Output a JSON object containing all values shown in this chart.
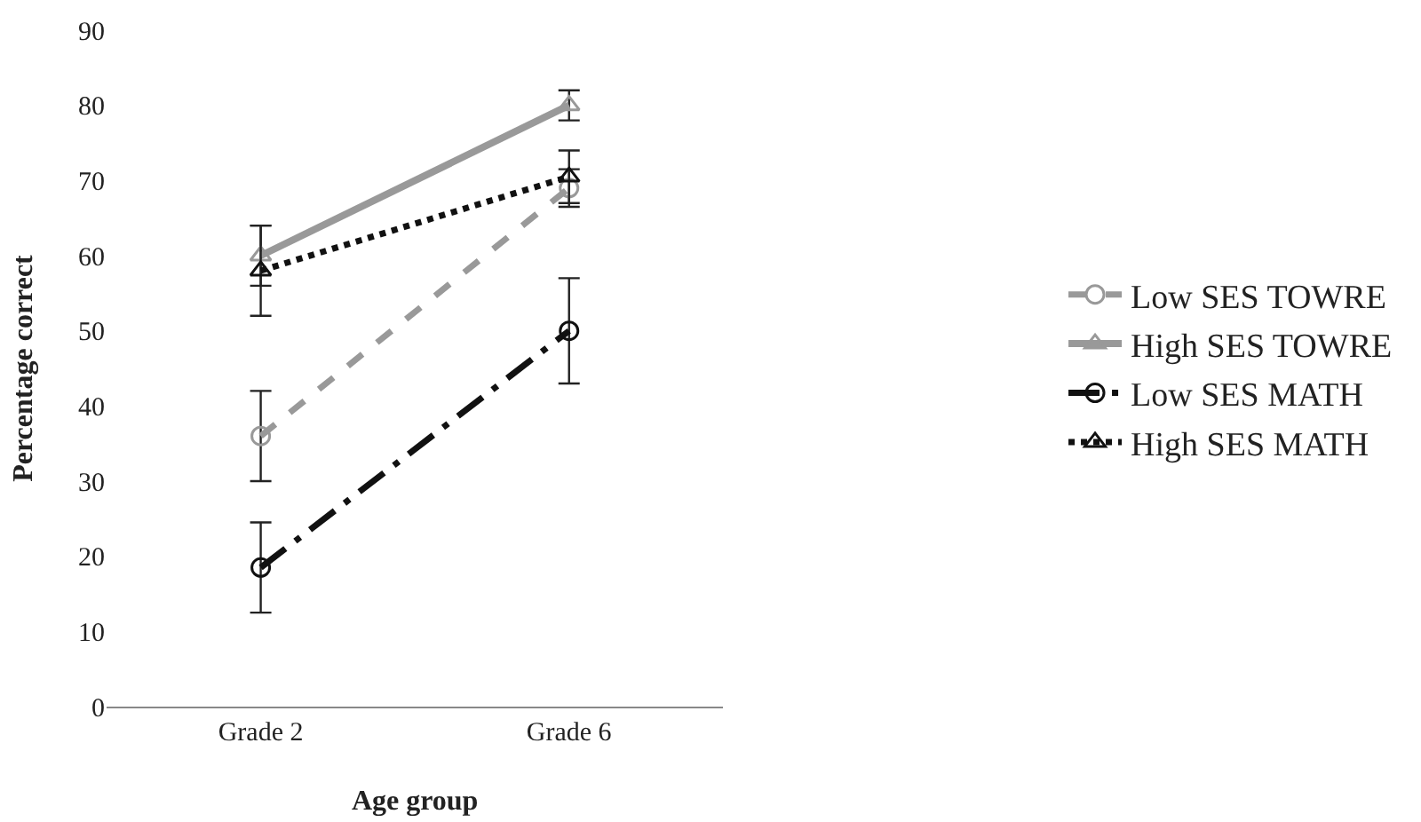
{
  "chart_data": {
    "type": "line",
    "xlabel": "Age group",
    "ylabel": "Percentage correct",
    "categories": [
      "Grade 2",
      "Grade 6"
    ],
    "ylim": [
      0,
      90
    ],
    "yticks": [
      0,
      10,
      20,
      30,
      40,
      50,
      60,
      70,
      80,
      90
    ],
    "grid": false,
    "legend": "right",
    "series": [
      {
        "name": "Low SES TOWRE",
        "color": "#999999",
        "values": [
          36,
          69
        ],
        "errors": [
          6,
          2.5
        ],
        "line_style": "dashed",
        "marker": "circle"
      },
      {
        "name": "High SES TOWRE",
        "color": "#999999",
        "values": [
          60,
          80
        ],
        "errors": [
          4,
          2
        ],
        "line_style": "solid",
        "marker": "triangle"
      },
      {
        "name": "Low SES MATH",
        "color": "#111111",
        "values": [
          18.5,
          50
        ],
        "errors": [
          6,
          7
        ],
        "line_style": "dashdot",
        "marker": "circle"
      },
      {
        "name": "High SES MATH",
        "color": "#111111",
        "values": [
          58,
          70.5
        ],
        "errors": [
          6,
          3.5
        ],
        "line_style": "dotted",
        "marker": "triangle"
      }
    ]
  }
}
